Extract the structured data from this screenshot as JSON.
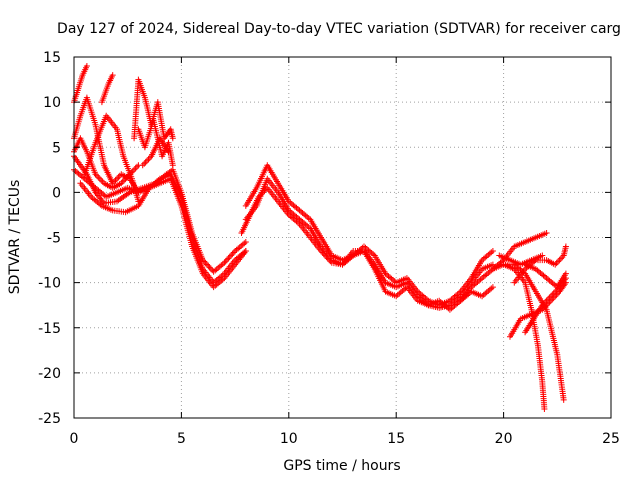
{
  "chart_data": {
    "type": "scatter",
    "title": "Day 127 of 2024, Sidereal Day-to-day VTEC variation (SDTVAR) for receiver carg",
    "xlabel": "GPS time / hours",
    "ylabel": "SDTVAR / TECUs",
    "xlim": [
      0,
      25
    ],
    "ylim": [
      -25,
      15
    ],
    "x_ticks": [
      0,
      5,
      10,
      15,
      20,
      25
    ],
    "y_ticks": [
      -25,
      -20,
      -15,
      -10,
      -5,
      0,
      5,
      10,
      15
    ],
    "x_tick_labels": [
      "0",
      "5",
      "10",
      "15",
      "20",
      "25"
    ],
    "y_tick_labels": [
      "-25",
      "-20",
      "-15",
      "-10",
      "-5",
      "0",
      "5",
      "10",
      "15"
    ],
    "grid": true,
    "marker": "plus",
    "color": "#ff0000",
    "series": [
      {
        "name": "track-1",
        "x": [
          0.0,
          0.6,
          1.0,
          1.4,
          2.0,
          2.6,
          3.2,
          3.8,
          4.3,
          4.6,
          5.0,
          5.5,
          6.0,
          6.5,
          7.0,
          7.5,
          8.0
        ],
        "y": [
          4.0,
          2.0,
          0.0,
          -1.2,
          -1.0,
          0.0,
          0.5,
          1.0,
          2.0,
          2.5,
          0.0,
          -4.5,
          -7.5,
          -8.8,
          -7.8,
          -6.5,
          -5.5
        ]
      },
      {
        "name": "track-2",
        "x": [
          0.0,
          0.5,
          1.0,
          1.5,
          2.0,
          2.5,
          3.0,
          3.5,
          4.0,
          4.5,
          5.0,
          5.5,
          6.0,
          6.5,
          7.0,
          7.5,
          8.0
        ],
        "y": [
          2.5,
          1.5,
          0.5,
          -0.5,
          0.0,
          0.5,
          0.0,
          0.5,
          1.0,
          1.5,
          -1.5,
          -6.0,
          -9.0,
          -10.5,
          -9.5,
          -8.0,
          -6.5
        ]
      },
      {
        "name": "track-3",
        "x": [
          0.3,
          0.8,
          1.3,
          1.8,
          2.4,
          3.0,
          3.5,
          4.0,
          4.5,
          5.0,
          5.5,
          6.0,
          6.5,
          7.0,
          7.5,
          8.0
        ],
        "y": [
          1.0,
          -0.5,
          -1.5,
          -2.0,
          -2.2,
          -1.5,
          0.5,
          1.5,
          2.0,
          -0.5,
          -5.0,
          -8.5,
          -10.0,
          -9.0,
          -7.5,
          -6.5
        ]
      },
      {
        "name": "track-4",
        "x": [
          0.0,
          0.3,
          0.6,
          1.0,
          1.4,
          1.8,
          2.2,
          2.6,
          3.0
        ],
        "y": [
          6.0,
          8.5,
          10.5,
          7.5,
          3.0,
          1.0,
          2.0,
          1.5,
          0.0
        ]
      },
      {
        "name": "track-5",
        "x": [
          0.5,
          1.0,
          1.5,
          2.0,
          2.3,
          2.7,
          3.0
        ],
        "y": [
          2.0,
          5.5,
          8.5,
          7.0,
          4.0,
          1.5,
          -1.0
        ]
      },
      {
        "name": "track-6",
        "x": [
          0.0,
          0.2,
          0.4,
          0.6
        ],
        "y": [
          10.0,
          11.5,
          13.0,
          14.0
        ]
      },
      {
        "name": "track-7",
        "x": [
          1.3,
          1.6,
          1.8
        ],
        "y": [
          10.0,
          12.0,
          13.0
        ]
      },
      {
        "name": "track-8",
        "x": [
          0.0,
          0.3,
          0.6,
          1.0,
          1.4,
          1.8,
          2.2,
          2.6,
          3.0
        ],
        "y": [
          4.5,
          6.0,
          4.5,
          2.0,
          1.0,
          0.5,
          1.0,
          2.0,
          3.0
        ]
      },
      {
        "name": "track-9",
        "x": [
          2.8,
          3.0,
          3.3,
          3.6,
          3.9,
          4.2,
          4.5,
          4.6
        ],
        "y": [
          6.0,
          12.5,
          10.5,
          7.5,
          10.0,
          6.0,
          7.0,
          6.0
        ]
      },
      {
        "name": "track-10",
        "x": [
          3.0,
          3.3,
          3.7,
          4.1,
          4.4,
          4.6
        ],
        "y": [
          7.0,
          5.0,
          8.0,
          4.0,
          5.5,
          3.0
        ]
      },
      {
        "name": "track-11",
        "x": [
          3.2,
          3.6,
          4.0,
          4.4
        ],
        "y": [
          3.0,
          4.0,
          6.0,
          4.5
        ]
      },
      {
        "name": "track-12",
        "x": [
          8.0,
          8.5,
          9.0,
          9.5,
          10.0,
          10.5,
          11.0,
          11.5,
          12.0,
          12.5,
          13.0,
          13.5,
          14.0,
          14.5,
          15.0,
          15.5,
          16.0,
          16.5,
          17.0,
          17.5,
          18.0,
          18.5,
          19.0,
          19.5
        ],
        "y": [
          -1.5,
          0.5,
          3.0,
          1.0,
          -1.0,
          -2.0,
          -3.0,
          -5.0,
          -7.0,
          -7.5,
          -7.0,
          -6.0,
          -7.0,
          -9.0,
          -10.0,
          -9.5,
          -11.0,
          -12.0,
          -12.5,
          -12.0,
          -11.0,
          -9.5,
          -7.5,
          -6.5
        ]
      },
      {
        "name": "track-13",
        "x": [
          8.0,
          8.5,
          9.0,
          9.5,
          10.0,
          10.5,
          11.0,
          11.5,
          12.0,
          12.5,
          13.0,
          13.5,
          14.0,
          14.5,
          15.0,
          15.5,
          16.0,
          16.5,
          17.0,
          17.5,
          18.0,
          18.5,
          19.0,
          19.5
        ],
        "y": [
          -3.0,
          -1.5,
          1.5,
          0.0,
          -2.0,
          -3.0,
          -4.0,
          -6.0,
          -7.5,
          -8.0,
          -7.0,
          -6.5,
          -8.0,
          -10.0,
          -10.5,
          -10.0,
          -11.5,
          -12.5,
          -12.8,
          -12.5,
          -11.5,
          -10.0,
          -8.5,
          -8.0
        ]
      },
      {
        "name": "track-14",
        "x": [
          7.8,
          8.2,
          8.6,
          9.0,
          9.5,
          10.0,
          10.5,
          11.0,
          11.5,
          12.0,
          12.5,
          13.0,
          13.5,
          14.0,
          14.5,
          15.0,
          15.5,
          16.0,
          16.5,
          17.0,
          17.5,
          18.0,
          18.5,
          19.0,
          19.5
        ],
        "y": [
          -4.5,
          -2.5,
          -0.5,
          0.5,
          -1.0,
          -2.5,
          -3.5,
          -5.0,
          -6.5,
          -7.8,
          -8.0,
          -6.5,
          -6.5,
          -8.5,
          -11.0,
          -11.5,
          -10.5,
          -12.0,
          -12.5,
          -12.0,
          -13.0,
          -12.0,
          -11.0,
          -11.5,
          -10.5
        ]
      },
      {
        "name": "track-15",
        "x": [
          18.0,
          18.5,
          19.0,
          19.5,
          20.0,
          20.5,
          21.0,
          21.5,
          22.0
        ],
        "y": [
          -12.0,
          -10.5,
          -9.5,
          -8.5,
          -7.5,
          -6.0,
          -5.5,
          -5.0,
          -4.5
        ]
      },
      {
        "name": "track-16",
        "x": [
          19.5,
          20.0,
          20.5,
          21.0,
          21.5,
          22.0,
          22.5,
          22.8
        ],
        "y": [
          -8.5,
          -8.0,
          -8.0,
          -9.0,
          -11.0,
          -13.0,
          -18.0,
          -23.0
        ]
      },
      {
        "name": "track-17",
        "x": [
          20.0,
          20.5,
          21.0,
          21.3,
          21.6,
          21.8,
          21.9
        ],
        "y": [
          -8.0,
          -8.5,
          -10.0,
          -13.0,
          -17.0,
          -21.0,
          -24.0
        ]
      },
      {
        "name": "track-18",
        "x": [
          21.0,
          21.4,
          21.8,
          22.2,
          22.6,
          22.9
        ],
        "y": [
          -15.5,
          -14.0,
          -12.5,
          -11.5,
          -10.5,
          -9.5
        ]
      },
      {
        "name": "track-19",
        "x": [
          20.3,
          20.8,
          21.3,
          21.8,
          22.2,
          22.6,
          22.9
        ],
        "y": [
          -16.0,
          -14.0,
          -13.5,
          -13.0,
          -12.0,
          -11.0,
          -10.0
        ]
      },
      {
        "name": "track-20",
        "x": [
          20.5,
          21.0,
          21.5,
          22.0,
          22.4,
          22.8,
          22.9
        ],
        "y": [
          -10.0,
          -8.5,
          -7.5,
          -7.5,
          -8.0,
          -7.0,
          -6.0
        ]
      },
      {
        "name": "track-21",
        "x": [
          21.0,
          21.5,
          22.0,
          22.5,
          22.9
        ],
        "y": [
          -8.0,
          -8.5,
          -9.5,
          -10.5,
          -9.0
        ]
      },
      {
        "name": "track-22",
        "x": [
          19.8,
          20.3,
          20.8,
          21.3,
          21.8
        ],
        "y": [
          -7.0,
          -7.5,
          -8.0,
          -7.5,
          -7.0
        ]
      }
    ]
  }
}
